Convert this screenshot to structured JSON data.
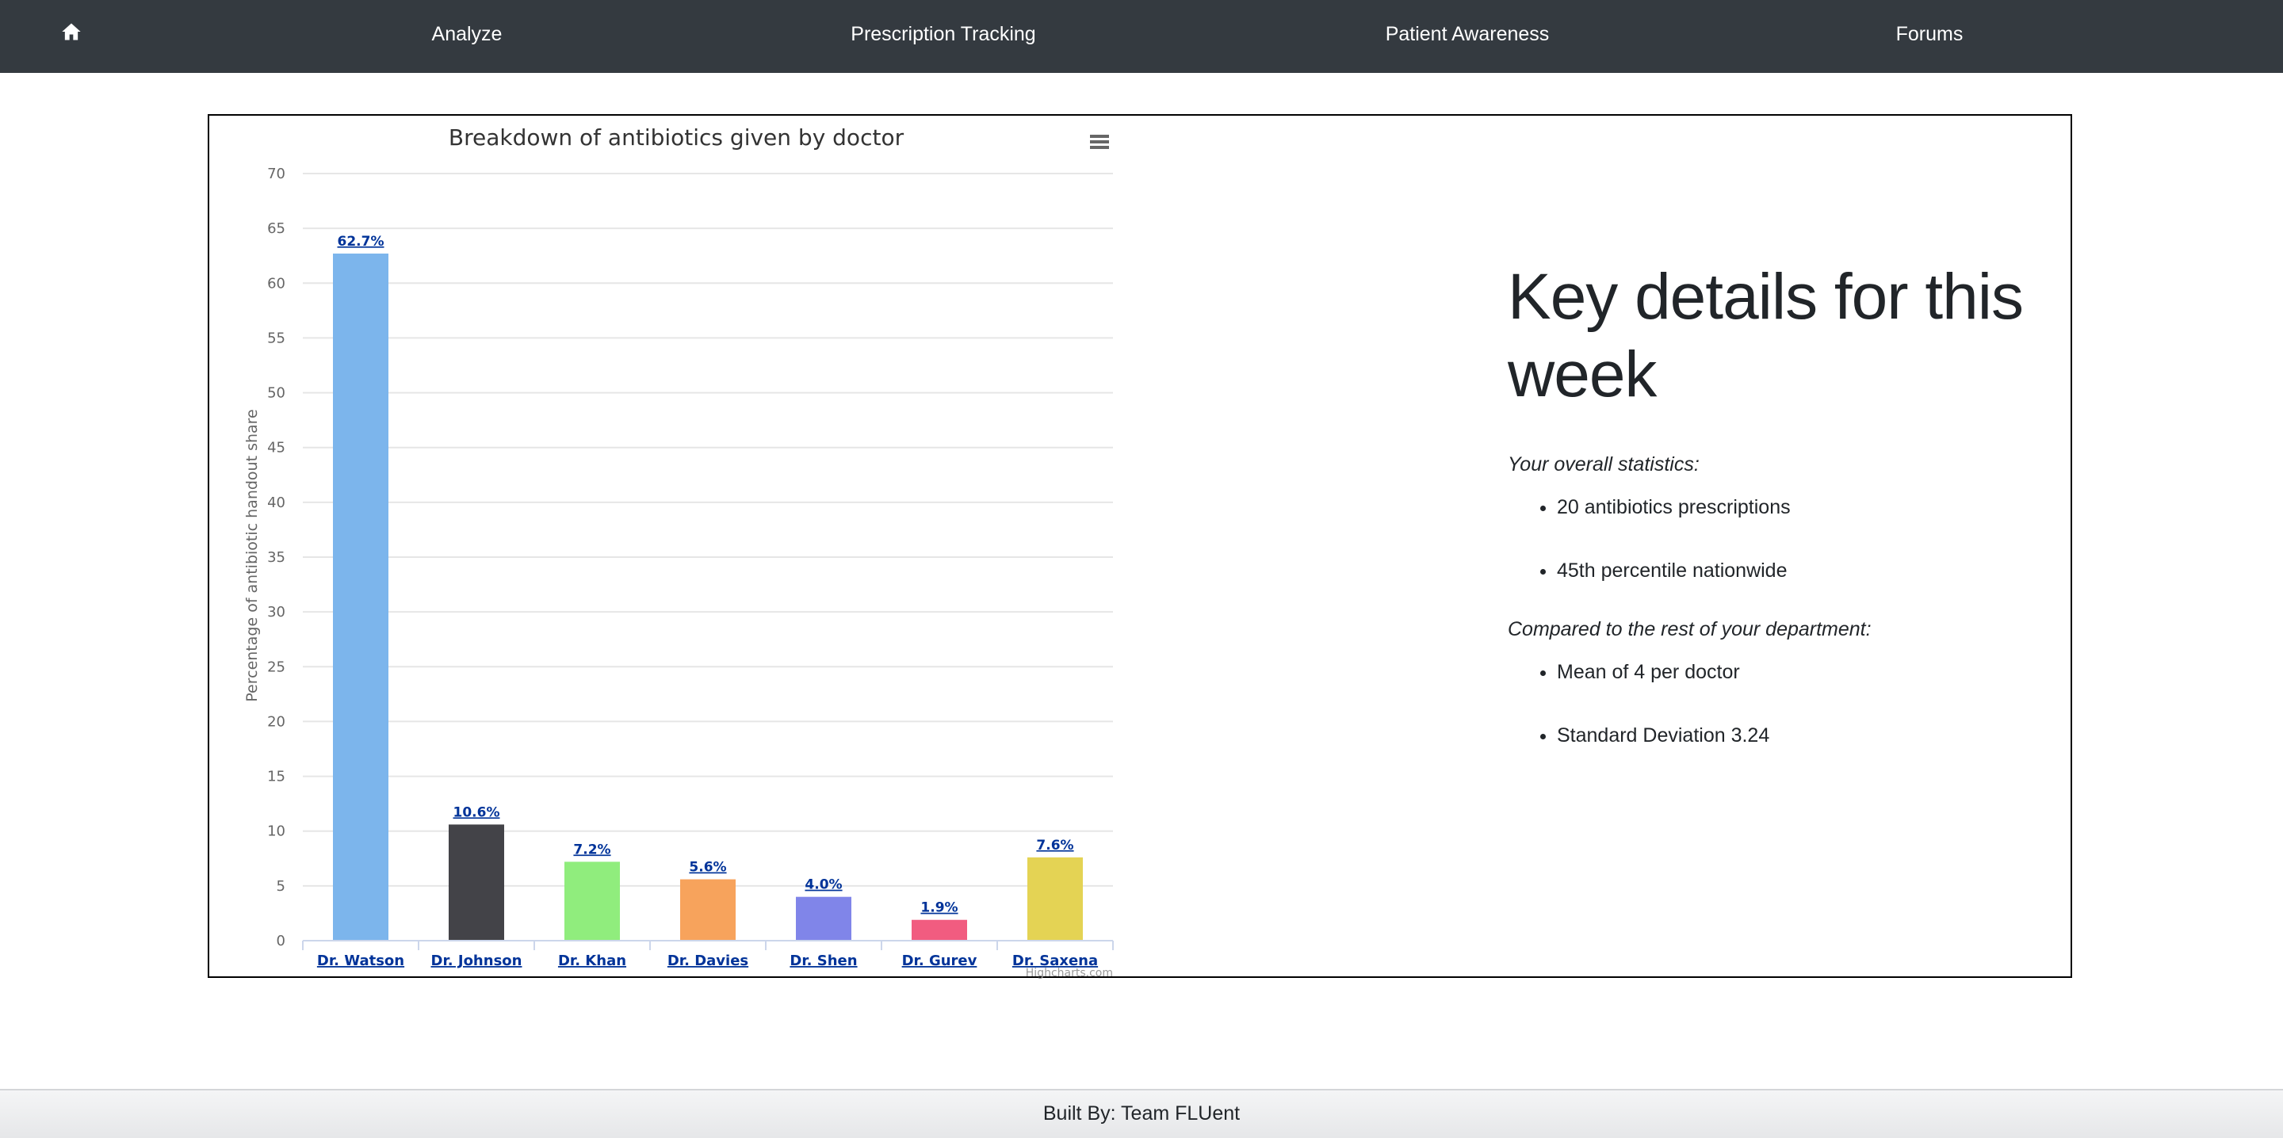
{
  "nav": {
    "home_icon": "home-icon",
    "links": [
      "Analyze",
      "Prescription Tracking",
      "Patient Awareness",
      "Forums"
    ]
  },
  "chart_data": {
    "type": "bar",
    "title": "Breakdown of antibiotics given by doctor",
    "ylabel": "Percentage of antibiotic handout share",
    "xlabel": "",
    "categories": [
      "Dr. Watson",
      "Dr. Johnson",
      "Dr. Khan",
      "Dr. Davies",
      "Dr. Shen",
      "Dr. Gurev",
      "Dr. Saxena"
    ],
    "values": [
      62.7,
      10.6,
      7.2,
      5.6,
      4.0,
      1.9,
      7.6
    ],
    "data_labels": [
      "62.7%",
      "10.6%",
      "7.2%",
      "5.6%",
      "4.0%",
      "1.9%",
      "7.6%"
    ],
    "colors": [
      "#7cb5ec",
      "#434348",
      "#90ed7d",
      "#f7a35c",
      "#8085e9",
      "#f15c80",
      "#e4d354"
    ],
    "ylim": [
      0,
      70
    ],
    "yticks": [
      0,
      5,
      10,
      15,
      20,
      25,
      30,
      35,
      40,
      45,
      50,
      55,
      60,
      65,
      70
    ],
    "grid": true,
    "legend": "none",
    "menu_icon": "hamburger-menu-icon",
    "credit": "Highcharts.com"
  },
  "details": {
    "heading": "Key details for this week",
    "overall_label": "Your overall statistics:",
    "overall_items": [
      "20 antibiotics prescriptions",
      "45th percentile nationwide"
    ],
    "compare_label": "Compared to the rest of your department:",
    "compare_items": [
      "Mean of 4 per doctor",
      "Standard Deviation 3.24"
    ]
  },
  "footer": {
    "text": "Built By: Team FLUent"
  }
}
